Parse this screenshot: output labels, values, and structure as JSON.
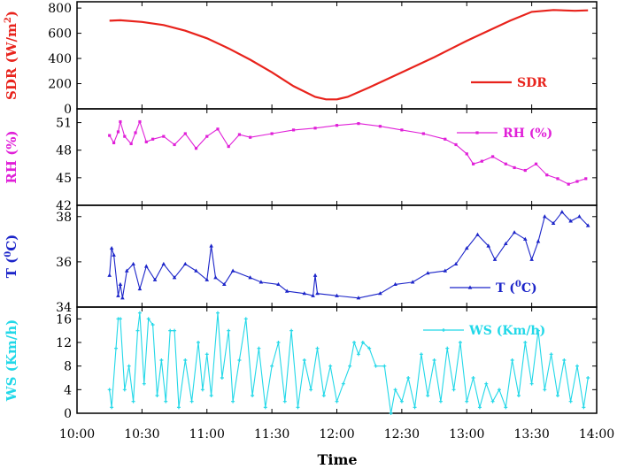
{
  "chart_data": {
    "type": "line",
    "xlabel": "Time",
    "x_ticks": [
      "10:00",
      "10:30",
      "11:00",
      "11:30",
      "12:00",
      "12:30",
      "13:00",
      "13:30",
      "14:00"
    ],
    "xlim": [
      "10:00",
      "14:00"
    ],
    "panels": [
      {
        "name": "SDR",
        "ylabel": "SDR (W/m2)",
        "ylabel_base": "SDR (W/m",
        "ylabel_sup": "2",
        "ylabel_tail": ")",
        "legend": "SDR",
        "color": "#e8231c",
        "marker": "none",
        "ylim": [
          0,
          850
        ],
        "yticks": [
          0,
          200,
          400,
          600,
          800
        ],
        "series": [
          {
            "x": "10:15",
            "y": 700
          },
          {
            "x": "10:20",
            "y": 703
          },
          {
            "x": "10:30",
            "y": 690
          },
          {
            "x": "10:40",
            "y": 665
          },
          {
            "x": "10:50",
            "y": 620
          },
          {
            "x": "11:00",
            "y": 560
          },
          {
            "x": "11:10",
            "y": 480
          },
          {
            "x": "11:20",
            "y": 390
          },
          {
            "x": "11:30",
            "y": 290
          },
          {
            "x": "11:40",
            "y": 180
          },
          {
            "x": "11:50",
            "y": 95
          },
          {
            "x": "11:55",
            "y": 75
          },
          {
            "x": "12:00",
            "y": 75
          },
          {
            "x": "12:05",
            "y": 95
          },
          {
            "x": "12:15",
            "y": 170
          },
          {
            "x": "12:30",
            "y": 290
          },
          {
            "x": "12:45",
            "y": 410
          },
          {
            "x": "13:00",
            "y": 540
          },
          {
            "x": "13:10",
            "y": 620
          },
          {
            "x": "13:20",
            "y": 700
          },
          {
            "x": "13:30",
            "y": 770
          },
          {
            "x": "13:40",
            "y": 785
          },
          {
            "x": "13:50",
            "y": 778
          },
          {
            "x": "13:56",
            "y": 782
          }
        ]
      },
      {
        "name": "RH",
        "ylabel": "RH (%)",
        "legend": "RH (%)",
        "color": "#e020d8",
        "marker": "square",
        "ylim": [
          42,
          52.5
        ],
        "yticks": [
          42,
          45,
          48,
          51
        ],
        "series": [
          {
            "x": "10:15",
            "y": 49.6
          },
          {
            "x": "10:17",
            "y": 48.8
          },
          {
            "x": "10:19",
            "y": 50.0
          },
          {
            "x": "10:20",
            "y": 51.1
          },
          {
            "x": "10:22",
            "y": 49.5
          },
          {
            "x": "10:25",
            "y": 48.7
          },
          {
            "x": "10:27",
            "y": 49.9
          },
          {
            "x": "10:29",
            "y": 51.1
          },
          {
            "x": "10:32",
            "y": 48.9
          },
          {
            "x": "10:35",
            "y": 49.2
          },
          {
            "x": "10:40",
            "y": 49.5
          },
          {
            "x": "10:45",
            "y": 48.6
          },
          {
            "x": "10:50",
            "y": 49.8
          },
          {
            "x": "10:55",
            "y": 48.2
          },
          {
            "x": "11:00",
            "y": 49.5
          },
          {
            "x": "11:05",
            "y": 50.3
          },
          {
            "x": "11:10",
            "y": 48.4
          },
          {
            "x": "11:15",
            "y": 49.7
          },
          {
            "x": "11:20",
            "y": 49.4
          },
          {
            "x": "11:30",
            "y": 49.8
          },
          {
            "x": "11:40",
            "y": 50.2
          },
          {
            "x": "11:50",
            "y": 50.4
          },
          {
            "x": "12:00",
            "y": 50.7
          },
          {
            "x": "12:10",
            "y": 50.9
          },
          {
            "x": "12:20",
            "y": 50.6
          },
          {
            "x": "12:30",
            "y": 50.2
          },
          {
            "x": "12:40",
            "y": 49.8
          },
          {
            "x": "12:50",
            "y": 49.2
          },
          {
            "x": "12:55",
            "y": 48.6
          },
          {
            "x": "13:00",
            "y": 47.6
          },
          {
            "x": "13:03",
            "y": 46.5
          },
          {
            "x": "13:07",
            "y": 46.8
          },
          {
            "x": "13:12",
            "y": 47.3
          },
          {
            "x": "13:18",
            "y": 46.5
          },
          {
            "x": "13:22",
            "y": 46.1
          },
          {
            "x": "13:27",
            "y": 45.8
          },
          {
            "x": "13:32",
            "y": 46.5
          },
          {
            "x": "13:37",
            "y": 45.3
          },
          {
            "x": "13:42",
            "y": 44.9
          },
          {
            "x": "13:47",
            "y": 44.3
          },
          {
            "x": "13:51",
            "y": 44.6
          },
          {
            "x": "13:55",
            "y": 44.9
          }
        ]
      },
      {
        "name": "T",
        "ylabel": "T (0C)",
        "ylabel_base": "T (",
        "ylabel_sup": "0",
        "ylabel_tail": "C)",
        "legend": "T (0C)",
        "legend_base": "T (",
        "legend_sup": "0",
        "legend_tail": "C)",
        "color": "#1c25c9",
        "marker": "triangle",
        "ylim": [
          34,
          38.5
        ],
        "yticks": [
          34,
          36,
          38
        ],
        "series": [
          {
            "x": "10:15",
            "y": 35.4
          },
          {
            "x": "10:16",
            "y": 36.6
          },
          {
            "x": "10:17",
            "y": 36.3
          },
          {
            "x": "10:19",
            "y": 34.5
          },
          {
            "x": "10:20",
            "y": 35.0
          },
          {
            "x": "10:21",
            "y": 34.4
          },
          {
            "x": "10:23",
            "y": 35.6
          },
          {
            "x": "10:26",
            "y": 35.9
          },
          {
            "x": "10:29",
            "y": 34.8
          },
          {
            "x": "10:32",
            "y": 35.8
          },
          {
            "x": "10:36",
            "y": 35.2
          },
          {
            "x": "10:40",
            "y": 35.9
          },
          {
            "x": "10:45",
            "y": 35.3
          },
          {
            "x": "10:50",
            "y": 35.9
          },
          {
            "x": "10:55",
            "y": 35.6
          },
          {
            "x": "11:00",
            "y": 35.2
          },
          {
            "x": "11:02",
            "y": 36.7
          },
          {
            "x": "11:04",
            "y": 35.3
          },
          {
            "x": "11:08",
            "y": 35.0
          },
          {
            "x": "11:12",
            "y": 35.6
          },
          {
            "x": "11:20",
            "y": 35.3
          },
          {
            "x": "11:25",
            "y": 35.1
          },
          {
            "x": "11:33",
            "y": 35.0
          },
          {
            "x": "11:37",
            "y": 34.7
          },
          {
            "x": "11:45",
            "y": 34.6
          },
          {
            "x": "11:49",
            "y": 34.5
          },
          {
            "x": "11:50",
            "y": 35.4
          },
          {
            "x": "11:51",
            "y": 34.6
          },
          {
            "x": "12:00",
            "y": 34.5
          },
          {
            "x": "12:10",
            "y": 34.4
          },
          {
            "x": "12:20",
            "y": 34.6
          },
          {
            "x": "12:27",
            "y": 35.0
          },
          {
            "x": "12:35",
            "y": 35.1
          },
          {
            "x": "12:42",
            "y": 35.5
          },
          {
            "x": "12:50",
            "y": 35.6
          },
          {
            "x": "12:55",
            "y": 35.9
          },
          {
            "x": "13:00",
            "y": 36.6
          },
          {
            "x": "13:05",
            "y": 37.2
          },
          {
            "x": "13:10",
            "y": 36.7
          },
          {
            "x": "13:13",
            "y": 36.1
          },
          {
            "x": "13:18",
            "y": 36.8
          },
          {
            "x": "13:22",
            "y": 37.3
          },
          {
            "x": "13:27",
            "y": 37.0
          },
          {
            "x": "13:30",
            "y": 36.1
          },
          {
            "x": "13:33",
            "y": 36.9
          },
          {
            "x": "13:36",
            "y": 38.0
          },
          {
            "x": "13:40",
            "y": 37.7
          },
          {
            "x": "13:44",
            "y": 38.2
          },
          {
            "x": "13:48",
            "y": 37.8
          },
          {
            "x": "13:52",
            "y": 38.0
          },
          {
            "x": "13:56",
            "y": 37.6
          }
        ]
      },
      {
        "name": "WS",
        "ylabel": "WS (Km/h)",
        "legend": "WS (Km/h)",
        "color": "#22d8e8",
        "marker": "cross",
        "ylim": [
          0,
          18
        ],
        "yticks": [
          0,
          4,
          8,
          12,
          16
        ],
        "series": [
          {
            "x": "10:15",
            "y": 4
          },
          {
            "x": "10:16",
            "y": 1
          },
          {
            "x": "10:18",
            "y": 11
          },
          {
            "x": "10:19",
            "y": 16
          },
          {
            "x": "10:20",
            "y": 16
          },
          {
            "x": "10:22",
            "y": 4
          },
          {
            "x": "10:24",
            "y": 8
          },
          {
            "x": "10:26",
            "y": 2
          },
          {
            "x": "10:28",
            "y": 14
          },
          {
            "x": "10:29",
            "y": 17
          },
          {
            "x": "10:31",
            "y": 5
          },
          {
            "x": "10:33",
            "y": 16
          },
          {
            "x": "10:35",
            "y": 15
          },
          {
            "x": "10:37",
            "y": 3
          },
          {
            "x": "10:39",
            "y": 9
          },
          {
            "x": "10:41",
            "y": 2
          },
          {
            "x": "10:43",
            "y": 14
          },
          {
            "x": "10:45",
            "y": 14
          },
          {
            "x": "10:47",
            "y": 1
          },
          {
            "x": "10:50",
            "y": 9
          },
          {
            "x": "10:53",
            "y": 2
          },
          {
            "x": "10:56",
            "y": 12
          },
          {
            "x": "10:58",
            "y": 4
          },
          {
            "x": "11:00",
            "y": 10
          },
          {
            "x": "11:02",
            "y": 3
          },
          {
            "x": "11:05",
            "y": 17
          },
          {
            "x": "11:07",
            "y": 6
          },
          {
            "x": "11:10",
            "y": 14
          },
          {
            "x": "11:12",
            "y": 2
          },
          {
            "x": "11:15",
            "y": 9
          },
          {
            "x": "11:18",
            "y": 16
          },
          {
            "x": "11:21",
            "y": 3
          },
          {
            "x": "11:24",
            "y": 11
          },
          {
            "x": "11:27",
            "y": 1
          },
          {
            "x": "11:30",
            "y": 8
          },
          {
            "x": "11:33",
            "y": 12
          },
          {
            "x": "11:36",
            "y": 2
          },
          {
            "x": "11:39",
            "y": 14
          },
          {
            "x": "11:42",
            "y": 1
          },
          {
            "x": "11:45",
            "y": 9
          },
          {
            "x": "11:48",
            "y": 4
          },
          {
            "x": "11:51",
            "y": 11
          },
          {
            "x": "11:54",
            "y": 3
          },
          {
            "x": "11:57",
            "y": 8
          },
          {
            "x": "12:00",
            "y": 2
          },
          {
            "x": "12:03",
            "y": 5
          },
          {
            "x": "12:06",
            "y": 8
          },
          {
            "x": "12:08",
            "y": 12
          },
          {
            "x": "12:10",
            "y": 10
          },
          {
            "x": "12:12",
            "y": 12
          },
          {
            "x": "12:15",
            "y": 11
          },
          {
            "x": "12:18",
            "y": 8
          },
          {
            "x": "12:22",
            "y": 8
          },
          {
            "x": "12:25",
            "y": 0
          },
          {
            "x": "12:27",
            "y": 4
          },
          {
            "x": "12:30",
            "y": 2
          },
          {
            "x": "12:33",
            "y": 6
          },
          {
            "x": "12:36",
            "y": 1
          },
          {
            "x": "12:39",
            "y": 10
          },
          {
            "x": "12:42",
            "y": 3
          },
          {
            "x": "12:45",
            "y": 9
          },
          {
            "x": "12:48",
            "y": 2
          },
          {
            "x": "12:51",
            "y": 11
          },
          {
            "x": "12:54",
            "y": 4
          },
          {
            "x": "12:57",
            "y": 12
          },
          {
            "x": "13:00",
            "y": 2
          },
          {
            "x": "13:03",
            "y": 6
          },
          {
            "x": "13:06",
            "y": 1
          },
          {
            "x": "13:09",
            "y": 5
          },
          {
            "x": "13:12",
            "y": 2
          },
          {
            "x": "13:15",
            "y": 4
          },
          {
            "x": "13:18",
            "y": 1
          },
          {
            "x": "13:21",
            "y": 9
          },
          {
            "x": "13:24",
            "y": 3
          },
          {
            "x": "13:27",
            "y": 12
          },
          {
            "x": "13:30",
            "y": 5
          },
          {
            "x": "13:33",
            "y": 14
          },
          {
            "x": "13:36",
            "y": 4
          },
          {
            "x": "13:39",
            "y": 10
          },
          {
            "x": "13:42",
            "y": 3
          },
          {
            "x": "13:45",
            "y": 9
          },
          {
            "x": "13:48",
            "y": 2
          },
          {
            "x": "13:51",
            "y": 8
          },
          {
            "x": "13:54",
            "y": 1
          },
          {
            "x": "13:56",
            "y": 6
          }
        ]
      }
    ]
  }
}
